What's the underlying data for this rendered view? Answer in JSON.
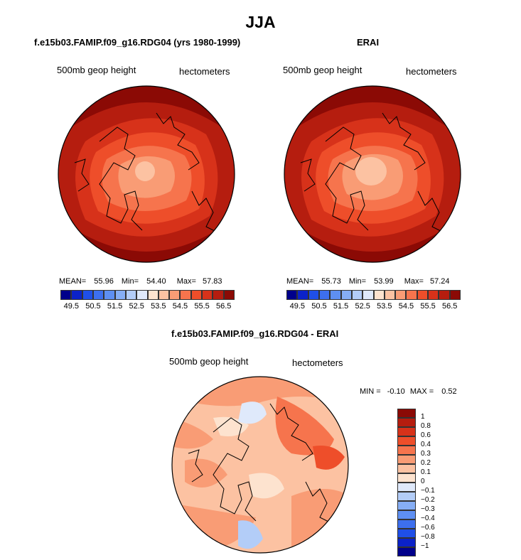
{
  "main_title": "JJA",
  "panels": [
    {
      "title": "f.e15b03.FAMIP.f09_g16.RDG04 (yrs 1980-1999)",
      "variable": "500mb geop height",
      "units": "hectometers",
      "mean_label": "MEAN=",
      "mean": "55.96",
      "min_label": "Min=",
      "min": "54.40",
      "max_label": "Max=",
      "max": "57.83"
    },
    {
      "title": "ERAI",
      "variable": "500mb geop height",
      "units": "hectometers",
      "mean_label": "MEAN=",
      "mean": "55.73",
      "min_label": "Min=",
      "min": "53.99",
      "max_label": "Max=",
      "max": "57.24"
    }
  ],
  "diff_panel": {
    "title": "f.e15b03.FAMIP.f09_g16.RDG04 - ERAI",
    "variable": "500mb geop height",
    "units": "hectometers",
    "min_label": "MIN =",
    "min": "-0.10",
    "max_label": "MAX =",
    "max": "0.52"
  },
  "colorbar_abs": {
    "ticks": [
      "49.5",
      "50.5",
      "51.5",
      "52.5",
      "53.5",
      "54.5",
      "55.5",
      "56.5"
    ],
    "colors": [
      "#00008b",
      "#0b22c8",
      "#1f4fe8",
      "#3d6fee",
      "#5e8ff2",
      "#86aef5",
      "#b3cdf8",
      "#dfe9fb",
      "#fde3cf",
      "#fcc2a2",
      "#f99c75",
      "#f6744d",
      "#ee4e2a",
      "#d7321a",
      "#b51d0f",
      "#8b0a05"
    ]
  },
  "colorbar_diff": {
    "labels": [
      "1",
      "0.8",
      "0.6",
      "0.4",
      "0.3",
      "0.2",
      "0.1",
      "0",
      "−0.1",
      "−0.2",
      "−0.3",
      "−0.4",
      "−0.6",
      "−0.8",
      "−1"
    ],
    "colors": [
      "#8b0a05",
      "#b51d0f",
      "#d7321a",
      "#ee4e2a",
      "#f6744d",
      "#f99c75",
      "#fcc2a2",
      "#fde3cf",
      "#dfe9fb",
      "#b3cdf8",
      "#86aef5",
      "#5e8ff2",
      "#3d6fee",
      "#1f4fe8",
      "#0b22c8",
      "#00008b"
    ]
  }
}
